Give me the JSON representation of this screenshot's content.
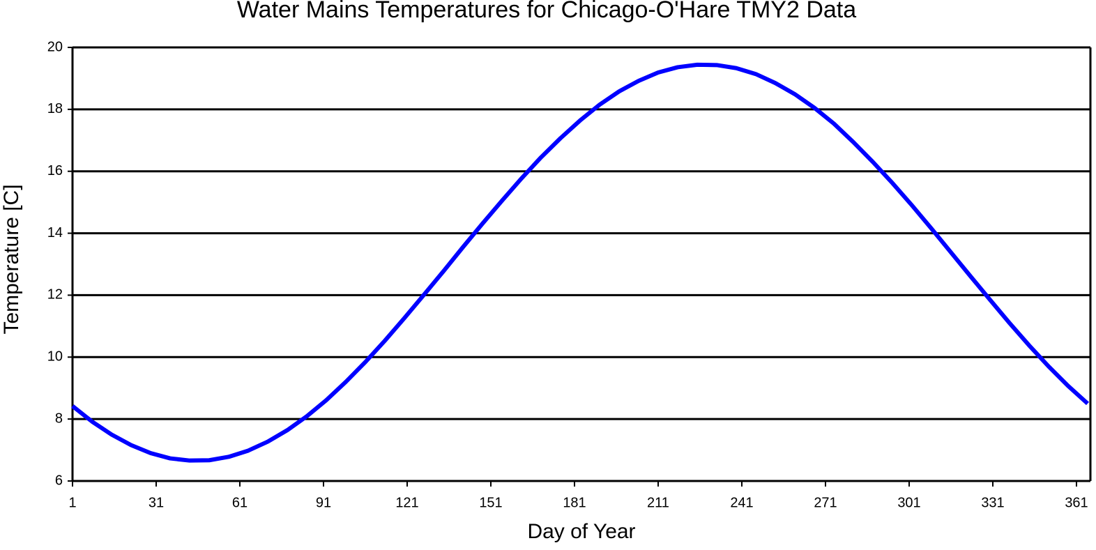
{
  "chart_data": {
    "type": "line",
    "title": "Water Mains Temperatures for Chicago-O'Hare TMY2 Data",
    "x_label": "Day of Year",
    "y_label": "Temperature [C]",
    "x": [
      1,
      8,
      15,
      22,
      29,
      36,
      43,
      50,
      57,
      64,
      71,
      78,
      85,
      92,
      99,
      106,
      113,
      120,
      127,
      134,
      141,
      148,
      155,
      162,
      169,
      176,
      183,
      190,
      197,
      204,
      211,
      218,
      225,
      232,
      239,
      246,
      253,
      260,
      267,
      274,
      281,
      288,
      295,
      302,
      309,
      316,
      323,
      330,
      337,
      344,
      351,
      358,
      365
    ],
    "series": [
      {
        "name": "Water Mains Temperature",
        "color": "#0000ff",
        "values": [
          8.42,
          7.92,
          7.5,
          7.16,
          6.9,
          6.73,
          6.66,
          6.67,
          6.78,
          6.98,
          7.27,
          7.64,
          8.09,
          8.61,
          9.2,
          9.84,
          10.53,
          11.26,
          12.01,
          12.77,
          13.55,
          14.31,
          15.05,
          15.77,
          16.45,
          17.07,
          17.64,
          18.15,
          18.58,
          18.92,
          19.19,
          19.36,
          19.44,
          19.43,
          19.33,
          19.14,
          18.85,
          18.49,
          18.05,
          17.54,
          16.94,
          16.3,
          15.62,
          14.9,
          14.15,
          13.38,
          12.61,
          11.85,
          11.1,
          10.38,
          9.7,
          9.07,
          8.5
        ]
      }
    ],
    "xlim": [
      1,
      366
    ],
    "xticks": [
      1,
      31,
      61,
      91,
      121,
      151,
      181,
      211,
      241,
      271,
      301,
      331,
      361
    ],
    "ylim": [
      6,
      20
    ],
    "yticks": [
      6,
      8,
      10,
      12,
      14,
      16,
      18,
      20
    ],
    "grid": true
  }
}
